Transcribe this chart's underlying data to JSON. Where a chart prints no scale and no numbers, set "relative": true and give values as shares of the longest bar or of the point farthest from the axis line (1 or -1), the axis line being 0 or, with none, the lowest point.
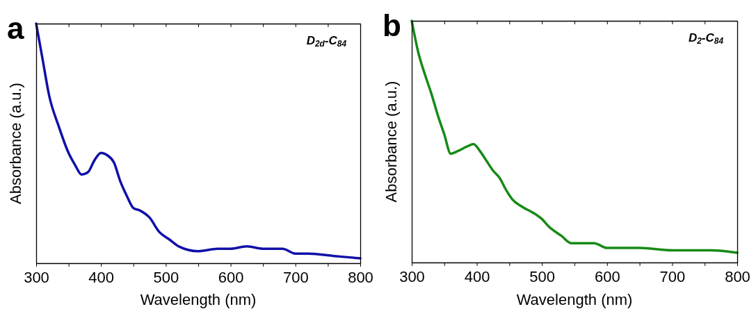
{
  "chart_data": [
    {
      "type": "line",
      "title": "a",
      "xlabel": "Wavelength (nm)",
      "ylabel": "Absorbance (a.u.)",
      "annotations": [
        "D$_{2d}$-C$_{84}$"
      ],
      "relative": true,
      "tick_labels": "x",
      "grid": false,
      "xlim": [
        300,
        800
      ],
      "xticks": [
        300,
        {
          "value": 350,
          "label": null
        },
        400,
        {
          "value": 450,
          "label": null
        },
        500,
        {
          "value": 550,
          "label": null
        },
        600,
        {
          "value": 650,
          "label": null
        },
        700,
        {
          "value": 750,
          "label": null
        },
        800
      ],
      "x": [
        300,
        310,
        320,
        335,
        350,
        360,
        370,
        380,
        390,
        400,
        410,
        420,
        430,
        440,
        450,
        460,
        475,
        490,
        505,
        520,
        550,
        580,
        600,
        625,
        650,
        680,
        700,
        720,
        760,
        800
      ],
      "series": [
        {
          "color": "#1010a8",
          "values": [
            1,
            0.85,
            0.7,
            0.57,
            0.46,
            0.41,
            0.37,
            0.38,
            0.43,
            0.46,
            0.45,
            0.42,
            0.34,
            0.28,
            0.23,
            0.22,
            0.19,
            0.13,
            0.1,
            0.07,
            0.05,
            0.06,
            0.06,
            0.07,
            0.06,
            0.06,
            0.04,
            0.04,
            0.03,
            0.02
          ]
        }
      ]
    },
    {
      "type": "line",
      "title": "b",
      "xlabel": "Wavelength (nm)",
      "ylabel": "Absorbance (a.u.)",
      "annotations": [
        "D$_{2}$-C$_{84}$"
      ],
      "relative": true,
      "tick_labels": "x",
      "grid": false,
      "xlim": [
        300,
        800
      ],
      "xticks": [
        300,
        {
          "value": 350,
          "label": null
        },
        400,
        {
          "value": 450,
          "label": null
        },
        500,
        {
          "value": 550,
          "label": null
        },
        600,
        {
          "value": 650,
          "label": null
        },
        700,
        {
          "value": 750,
          "label": null
        },
        800
      ],
      "x": [
        300,
        310,
        320,
        330,
        340,
        350,
        360,
        370,
        385,
        395,
        405,
        415,
        425,
        435,
        445,
        455,
        470,
        490,
        500,
        510,
        530,
        545,
        565,
        580,
        600,
        650,
        700,
        760,
        800
      ],
      "series": [
        {
          "color": "#168a16",
          "values": [
            1,
            0.87,
            0.78,
            0.7,
            0.61,
            0.53,
            0.45,
            0.46,
            0.48,
            0.49,
            0.46,
            0.42,
            0.38,
            0.35,
            0.3,
            0.26,
            0.23,
            0.2,
            0.18,
            0.15,
            0.11,
            0.08,
            0.08,
            0.08,
            0.06,
            0.06,
            0.05,
            0.05,
            0.04
          ]
        }
      ]
    }
  ]
}
